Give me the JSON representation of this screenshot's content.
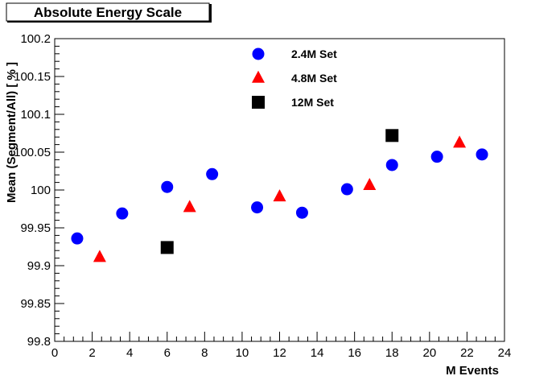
{
  "chart_data": {
    "type": "scatter",
    "title": "Absolute Energy Scale",
    "xlabel": "M Events",
    "ylabel": "Mean (Segment/All) [ % ]",
    "xlim": [
      0,
      24
    ],
    "ylim": [
      99.8,
      100.2
    ],
    "x_ticks": [
      "0",
      "2",
      "4",
      "6",
      "8",
      "10",
      "12",
      "14",
      "16",
      "18",
      "20",
      "22",
      "24"
    ],
    "y_ticks": [
      "99.8",
      "99.85",
      "99.9",
      "99.95",
      "100",
      "100.05",
      "100.1",
      "100.15",
      "100.2"
    ],
    "grid": false,
    "legend_position": "top-center",
    "series": [
      {
        "name": "2.4M Set",
        "marker": "circle",
        "color": "#0000ff",
        "points": [
          {
            "x": 1.2,
            "y": 99.936
          },
          {
            "x": 3.6,
            "y": 99.969
          },
          {
            "x": 6.0,
            "y": 100.004
          },
          {
            "x": 8.4,
            "y": 100.021
          },
          {
            "x": 10.8,
            "y": 99.977
          },
          {
            "x": 13.2,
            "y": 99.97
          },
          {
            "x": 15.6,
            "y": 100.001
          },
          {
            "x": 18.0,
            "y": 100.033
          },
          {
            "x": 20.4,
            "y": 100.044
          },
          {
            "x": 22.8,
            "y": 100.047
          }
        ]
      },
      {
        "name": "4.8M Set",
        "marker": "triangle",
        "color": "#ff0000",
        "points": [
          {
            "x": 2.4,
            "y": 99.911
          },
          {
            "x": 7.2,
            "y": 99.977
          },
          {
            "x": 12.0,
            "y": 99.991
          },
          {
            "x": 16.8,
            "y": 100.006
          },
          {
            "x": 21.6,
            "y": 100.062
          }
        ]
      },
      {
        "name": "12M Set",
        "marker": "square",
        "color": "#000000",
        "points": [
          {
            "x": 6.0,
            "y": 99.924
          },
          {
            "x": 18.0,
            "y": 100.072
          }
        ]
      }
    ]
  }
}
